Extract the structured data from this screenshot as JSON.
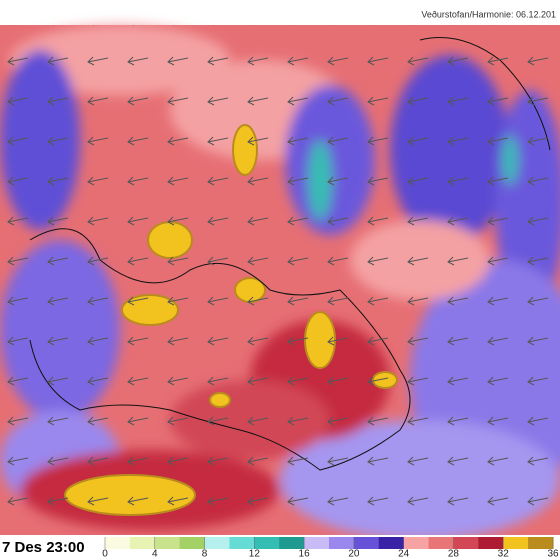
{
  "header": {
    "source": "Veðurstofan/Harmonie: 06.12.201"
  },
  "timestamp": "7 Des 23:00",
  "legend": {
    "ticks": [
      0,
      4,
      8,
      12,
      16,
      20,
      24,
      28,
      32,
      36
    ],
    "colors": [
      "#fbfbe2",
      "#e6f3b2",
      "#c9e38c",
      "#a3d166",
      "#b6f0ee",
      "#66dcd6",
      "#34bdb2",
      "#1f9a90",
      "#c9bcf6",
      "#9a88ee",
      "#6652d8",
      "#3a22a6",
      "#f7a3a3",
      "#e97676",
      "#d24656",
      "#ad1c33",
      "#f2c21f",
      "#b98c1d"
    ]
  }
}
